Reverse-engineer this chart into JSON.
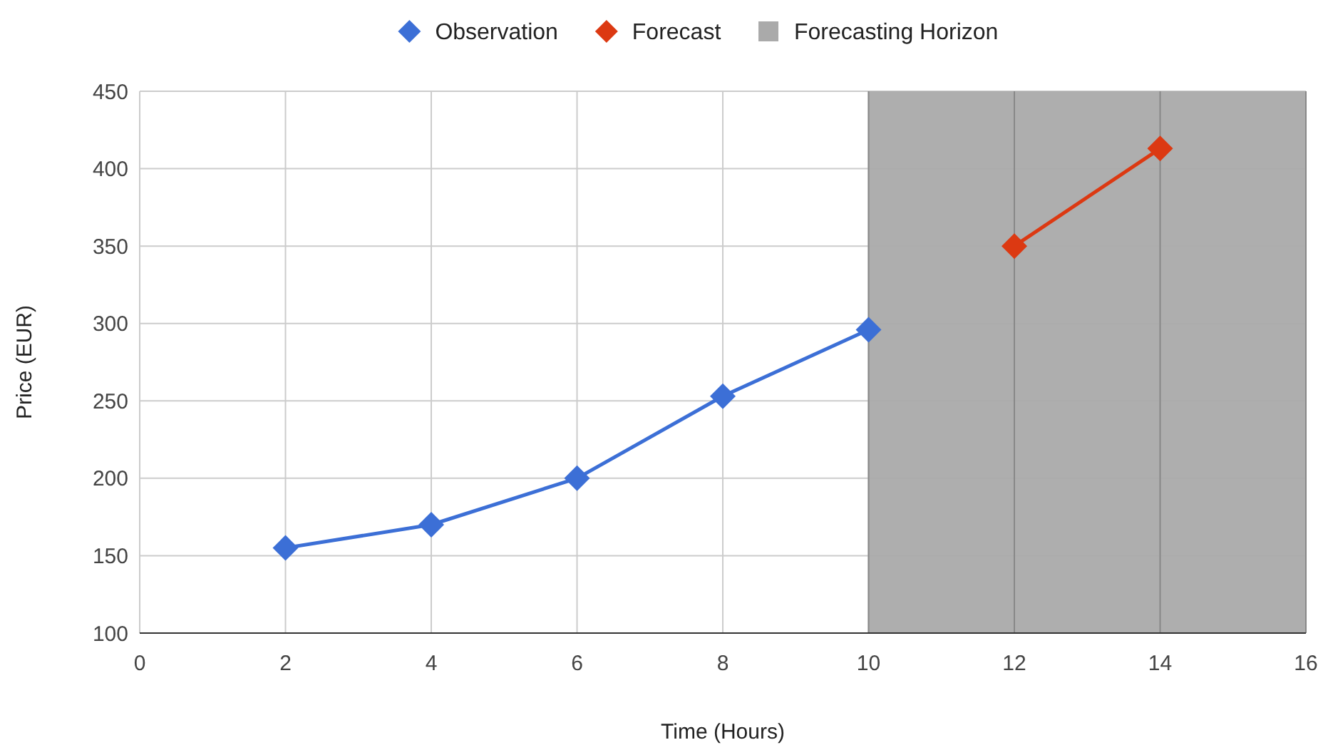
{
  "chart_data": {
    "type": "line",
    "xlabel": "Time (Hours)",
    "ylabel": "Price (EUR)",
    "xlim": [
      0,
      16
    ],
    "xticks": [
      0,
      2,
      4,
      6,
      8,
      10,
      12,
      14,
      16
    ],
    "ylim": [
      100,
      450
    ],
    "yticks": [
      100,
      150,
      200,
      250,
      300,
      350,
      400,
      450
    ],
    "grid": true,
    "legend": "top",
    "marker": "diamond",
    "line_style": "solid",
    "series": [
      {
        "name": "Observation",
        "color": "#3c6fd6",
        "x": [
          2,
          4,
          6,
          8,
          10
        ],
        "values": [
          155,
          170,
          200,
          253,
          296
        ]
      },
      {
        "name": "Forecast",
        "color": "#dc3912",
        "x": [
          12,
          14
        ],
        "values": [
          350,
          413
        ]
      }
    ],
    "bands": [
      {
        "axis": "x",
        "from": 10,
        "to": 16,
        "label": "Forecasting Horizon",
        "color": "#aaaaaa"
      }
    ]
  }
}
